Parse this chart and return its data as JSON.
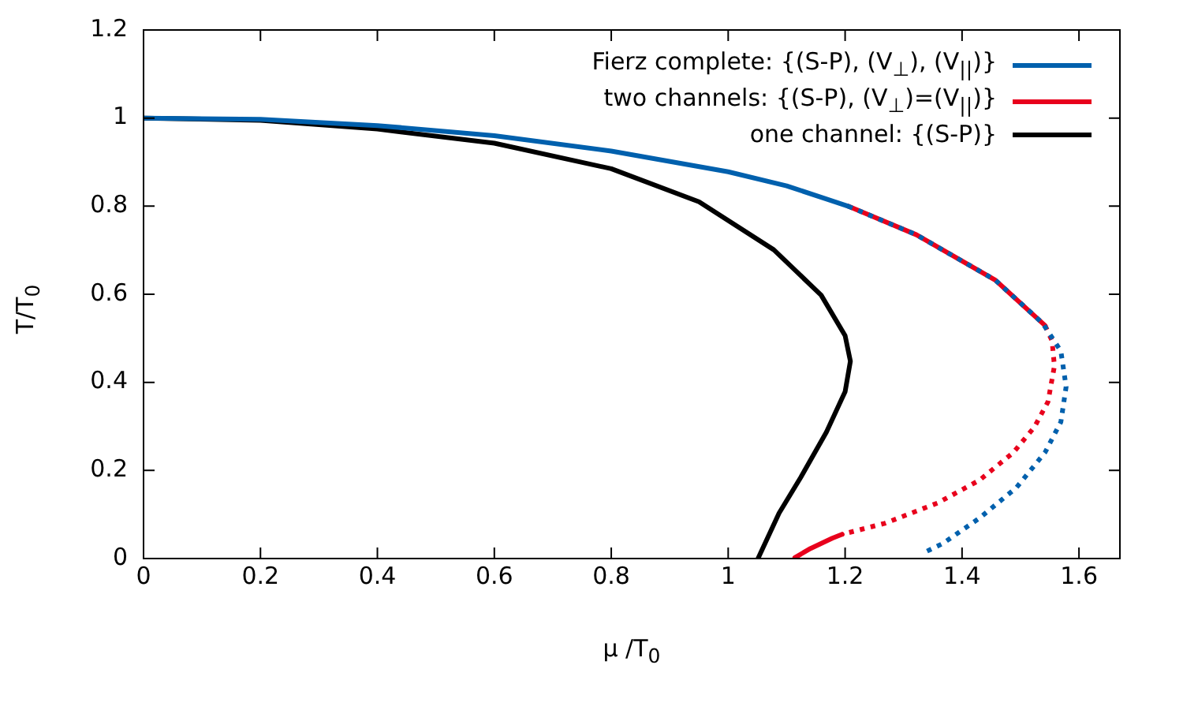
{
  "chart_data": {
    "type": "line",
    "xlabel": "μ /T$_{0}$",
    "ylabel": "T/T$_{0}$",
    "xlim": [
      0,
      1.67
    ],
    "xticks": [
      0,
      0.2,
      0.4,
      0.6,
      0.8,
      1,
      1.2,
      1.4,
      1.6
    ],
    "ylim": [
      0,
      1.2
    ],
    "yticks": [
      0,
      0.2,
      0.4,
      0.6,
      0.8,
      1,
      1.2
    ],
    "grid": false,
    "legend": "top right",
    "marker": "none",
    "series": [
      {
        "name": "Fierz complete: {(S-P), (V$_{⊥}$), (V$_{||}$)}",
        "color": "#0060ad",
        "line_style": "solid",
        "x": [
          0,
          0.2,
          0.4,
          0.6,
          0.8,
          1.0,
          1.1,
          1.205
        ],
        "values": [
          1,
          0.997,
          0.983,
          0.96,
          0.925,
          0.878,
          0.846,
          0.8
        ]
      },
      {
        "color": "#0060ad",
        "line_style": "dotted",
        "x": [
          1.205,
          1.322,
          1.457,
          1.538,
          1.569,
          1.578,
          1.569,
          1.542,
          1.493,
          1.43,
          1.367,
          1.331
        ],
        "values": [
          0.8,
          0.735,
          0.632,
          0.534,
          0.471,
          0.39,
          0.31,
          0.241,
          0.161,
          0.092,
          0.034,
          0.011
        ]
      },
      {
        "name": "two channels: {(S-P), (V$_{⊥}$)=(V$_{||}$)}",
        "color": "#e8001c",
        "line_style": "solid",
        "x": [
          1.205,
          1.322,
          1.457,
          1.542
        ],
        "values": [
          0.8,
          0.735,
          0.632,
          0.529
        ]
      },
      {
        "color": "#e8001c",
        "line_style": "dotted",
        "x": [
          1.542,
          1.554,
          1.558,
          1.547,
          1.524,
          1.488,
          1.43,
          1.358,
          1.268,
          1.195
        ],
        "values": [
          0.529,
          0.494,
          0.437,
          0.356,
          0.299,
          0.241,
          0.178,
          0.126,
          0.08,
          0.055
        ]
      },
      {
        "color": "#e8001c",
        "line_style": "solid",
        "x": [
          1.195,
          1.178,
          1.141,
          1.114
        ],
        "values": [
          0.055,
          0.046,
          0.023,
          0.002
        ]
      },
      {
        "name": "one channel: {(S-P)}",
        "color": "#000000",
        "line_style": "solid",
        "x": [
          0,
          0.2,
          0.4,
          0.6,
          0.8,
          0.95,
          1.078,
          1.159,
          1.2,
          1.209,
          1.2,
          1.168,
          1.124,
          1.087,
          1.051
        ],
        "values": [
          1,
          0.995,
          0.975,
          0.943,
          0.885,
          0.81,
          0.701,
          0.598,
          0.506,
          0.448,
          0.379,
          0.287,
          0.184,
          0.103,
          0
        ]
      }
    ]
  }
}
